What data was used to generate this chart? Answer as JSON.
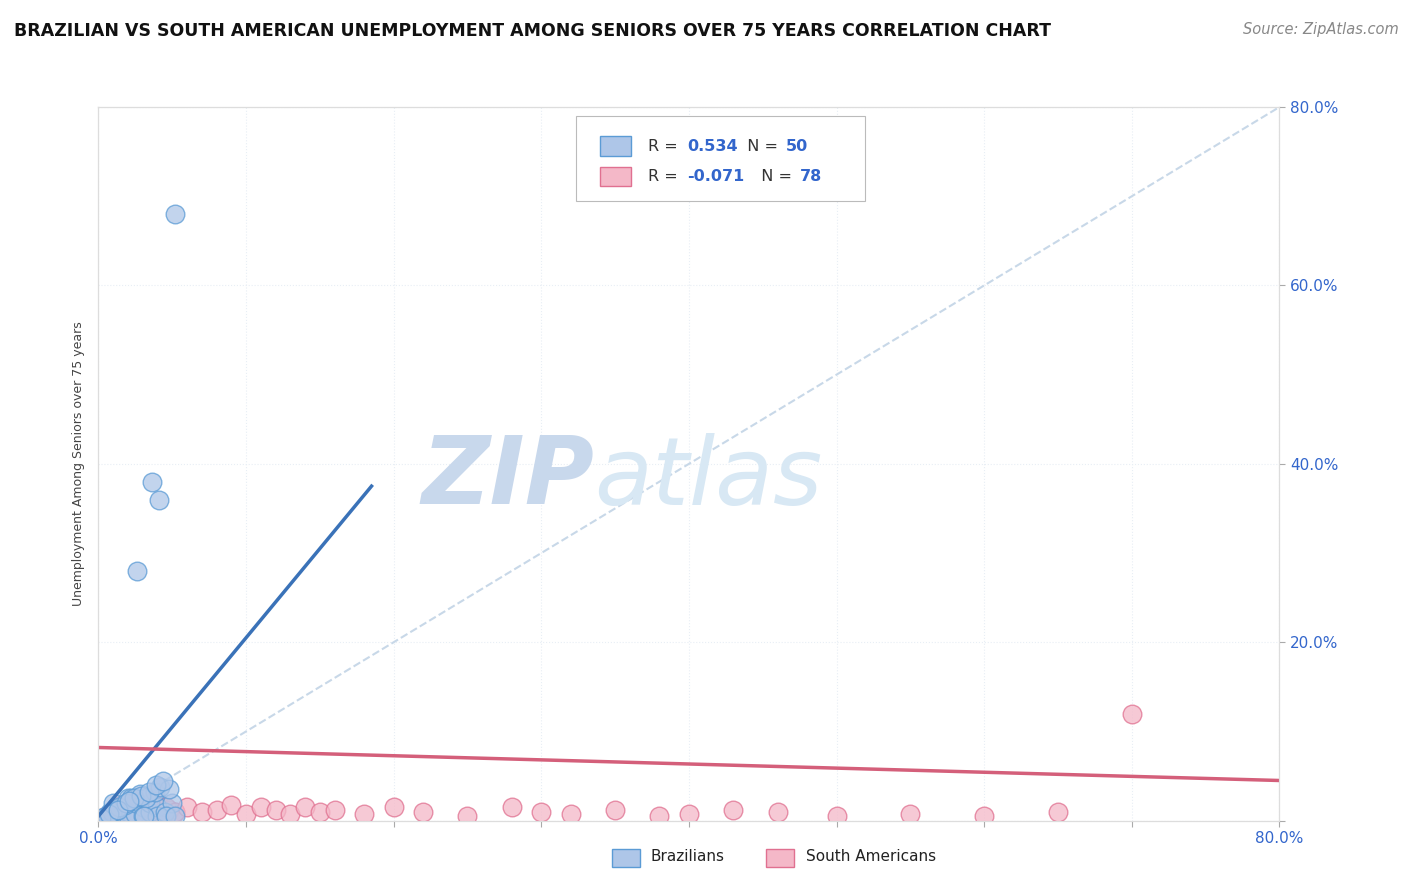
{
  "title": "BRAZILIAN VS SOUTH AMERICAN UNEMPLOYMENT AMONG SENIORS OVER 75 YEARS CORRELATION CHART",
  "source": "Source: ZipAtlas.com",
  "ylabel": "Unemployment Among Seniors over 75 years",
  "xlim": [
    0.0,
    0.8
  ],
  "ylim": [
    0.0,
    0.8
  ],
  "brazil_R": 0.534,
  "brazil_N": 50,
  "sa_R": -0.071,
  "sa_N": 78,
  "brazil_color": "#aec6e8",
  "brazil_edge": "#5b9bd5",
  "sa_color": "#f4b8c8",
  "sa_edge": "#e07090",
  "brazil_line_color": "#3a72b8",
  "sa_line_color": "#d45f7a",
  "diagonal_color": "#c8d8e8",
  "watermark_color": "#d8e4f0",
  "grid_color": "#e8eef5",
  "title_fontsize": 12.5,
  "source_fontsize": 10.5,
  "axis_label_fontsize": 9,
  "brazil_x": [
    0.005,
    0.008,
    0.01,
    0.01,
    0.015,
    0.015,
    0.02,
    0.02,
    0.02,
    0.025,
    0.025,
    0.03,
    0.03,
    0.03,
    0.035,
    0.035,
    0.04,
    0.04,
    0.045,
    0.05,
    0.005,
    0.008,
    0.012,
    0.018,
    0.022,
    0.028,
    0.032,
    0.038,
    0.042,
    0.048,
    0.003,
    0.006,
    0.009,
    0.014,
    0.019,
    0.024,
    0.029,
    0.034,
    0.039,
    0.044,
    0.002,
    0.007,
    0.013,
    0.021,
    0.026,
    0.031,
    0.036,
    0.041,
    0.046,
    0.052
  ],
  "brazil_y": [
    0.005,
    0.01,
    0.02,
    0.005,
    0.015,
    0.005,
    0.01,
    0.025,
    0.005,
    0.008,
    0.02,
    0.015,
    0.025,
    0.005,
    0.01,
    0.02,
    0.015,
    0.005,
    0.01,
    0.02,
    0.003,
    0.008,
    0.012,
    0.018,
    0.025,
    0.03,
    0.025,
    0.032,
    0.038,
    0.035,
    0.002,
    0.005,
    0.01,
    0.015,
    0.02,
    0.025,
    0.028,
    0.032,
    0.04,
    0.045,
    0.003,
    0.007,
    0.012,
    0.022,
    0.28,
    0.005,
    0.38,
    0.36,
    0.005,
    0.005
  ],
  "brazil_outlier_x": [
    0.052
  ],
  "brazil_outlier_y": [
    0.68
  ],
  "sa_x": [
    0.005,
    0.008,
    0.01,
    0.012,
    0.015,
    0.018,
    0.02,
    0.022,
    0.025,
    0.028,
    0.03,
    0.032,
    0.035,
    0.038,
    0.04,
    0.042,
    0.045,
    0.048,
    0.05,
    0.052,
    0.005,
    0.008,
    0.012,
    0.018,
    0.022,
    0.028,
    0.032,
    0.038,
    0.042,
    0.048,
    0.003,
    0.006,
    0.009,
    0.014,
    0.019,
    0.024,
    0.029,
    0.034,
    0.039,
    0.044,
    0.002,
    0.007,
    0.013,
    0.021,
    0.026,
    0.031,
    0.036,
    0.041,
    0.046,
    0.052,
    0.06,
    0.07,
    0.08,
    0.09,
    0.1,
    0.11,
    0.12,
    0.13,
    0.14,
    0.15,
    0.16,
    0.18,
    0.2,
    0.22,
    0.25,
    0.28,
    0.3,
    0.32,
    0.35,
    0.38,
    0.4,
    0.43,
    0.46,
    0.5,
    0.55,
    0.6,
    0.65,
    0.7
  ],
  "sa_y": [
    0.005,
    0.008,
    0.01,
    0.015,
    0.018,
    0.008,
    0.012,
    0.005,
    0.02,
    0.01,
    0.015,
    0.008,
    0.012,
    0.018,
    0.022,
    0.015,
    0.008,
    0.012,
    0.005,
    0.01,
    0.003,
    0.006,
    0.009,
    0.015,
    0.02,
    0.01,
    0.015,
    0.005,
    0.008,
    0.012,
    0.002,
    0.005,
    0.008,
    0.012,
    0.018,
    0.01,
    0.015,
    0.008,
    0.012,
    0.005,
    0.001,
    0.004,
    0.008,
    0.015,
    0.01,
    0.008,
    0.012,
    0.005,
    0.015,
    0.01,
    0.015,
    0.01,
    0.012,
    0.018,
    0.008,
    0.015,
    0.012,
    0.008,
    0.015,
    0.01,
    0.012,
    0.008,
    0.015,
    0.01,
    0.005,
    0.015,
    0.01,
    0.008,
    0.012,
    0.005,
    0.008,
    0.012,
    0.01,
    0.005,
    0.008,
    0.005,
    0.01,
    0.12
  ],
  "brazil_line_x0": 0.0,
  "brazil_line_x1": 0.185,
  "brazil_line_y0": 0.005,
  "brazil_line_y1": 0.375,
  "sa_line_x0": 0.0,
  "sa_line_x1": 0.8,
  "sa_line_y0": 0.082,
  "sa_line_y1": 0.045
}
